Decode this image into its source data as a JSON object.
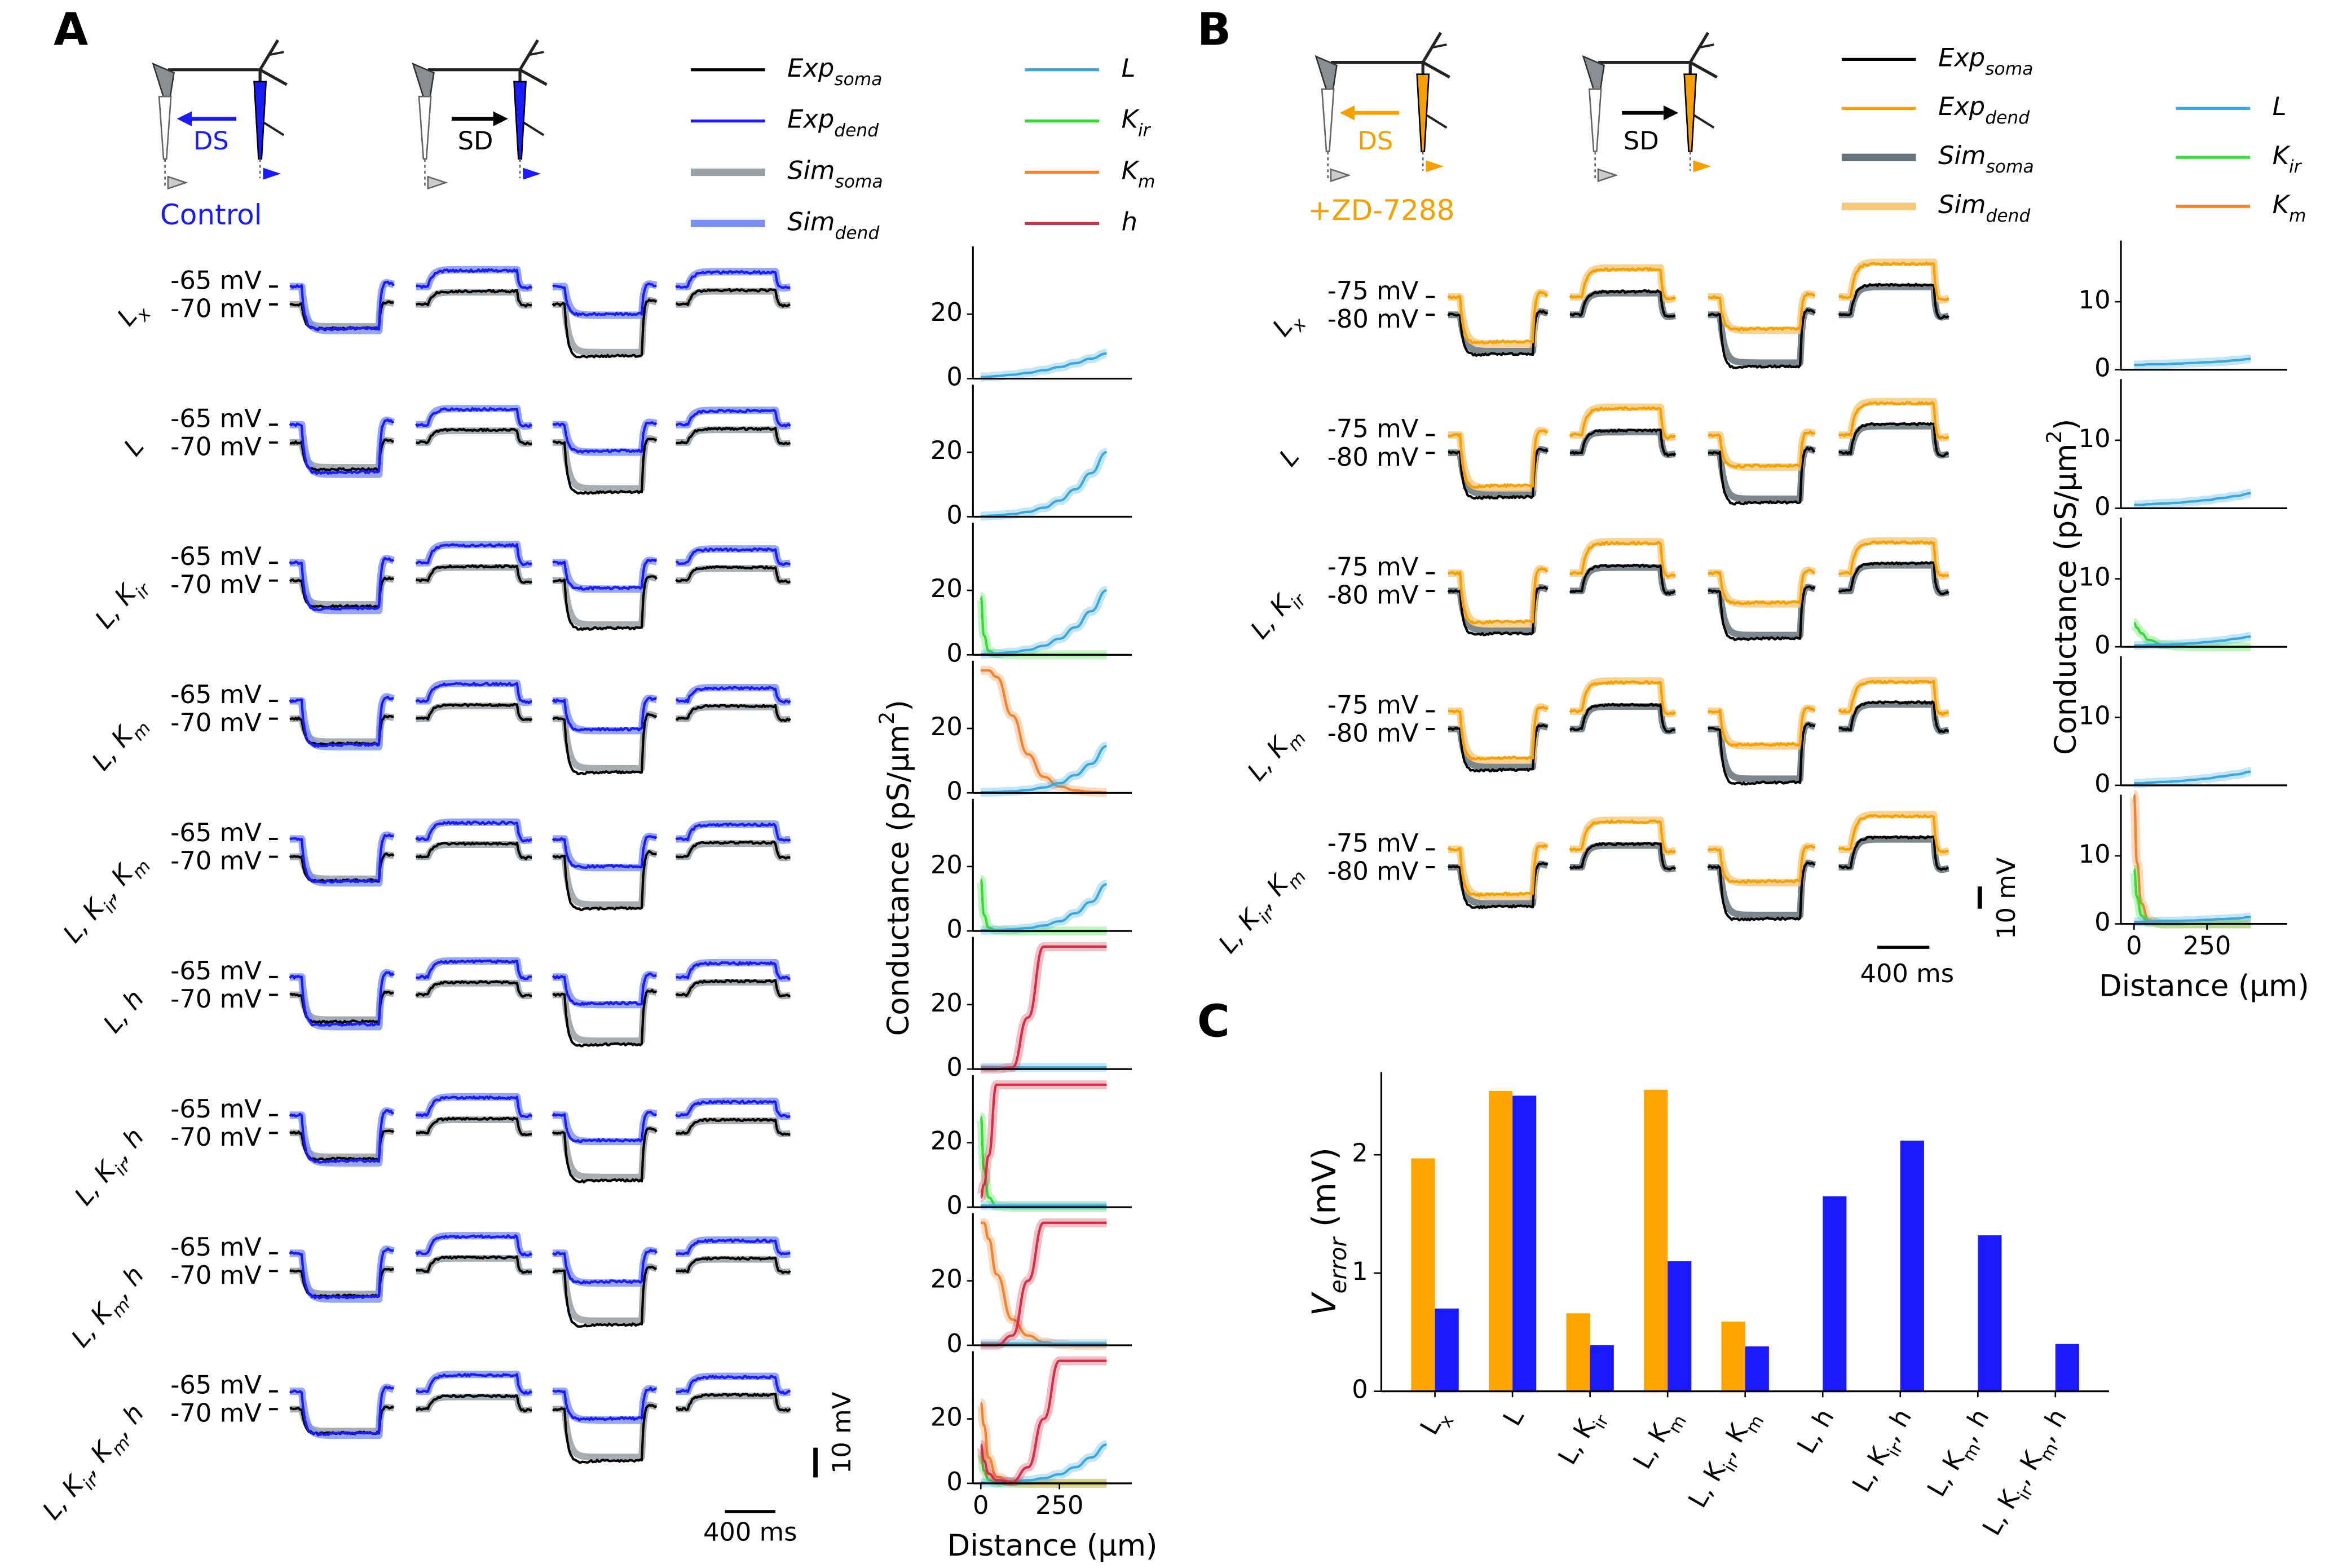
{
  "panel_a": {
    "letter": "A",
    "icon_labels": {
      "ds": "DS",
      "sd": "SD"
    },
    "condition": "Control",
    "legend": [
      {
        "parts": [
          "Exp",
          "soma"
        ],
        "color": "#000000"
      },
      {
        "parts": [
          "Exp",
          "dend"
        ],
        "color": "#1a1aff"
      },
      {
        "parts": [
          "Sim",
          "soma"
        ],
        "color": "#999fa3"
      },
      {
        "parts": [
          "Sim",
          "dend"
        ],
        "color": "#7d8ff5"
      }
    ],
    "channel_legend": [
      {
        "parts": [
          "L"
        ],
        "color": "#3aa8e0"
      },
      {
        "parts": [
          "K",
          "ir"
        ],
        "color": "#33dd33"
      },
      {
        "parts": [
          "K",
          "m"
        ],
        "color": "#f5822a"
      },
      {
        "parts": [
          "h"
        ],
        "color": "#d62c45"
      }
    ],
    "row_labels": [
      [
        "L",
        "x"
      ],
      [
        "L"
      ],
      [
        "L, K",
        "ir"
      ],
      [
        "L, K",
        "m"
      ],
      [
        "L, K",
        "ir",
        ", K",
        "m"
      ],
      [
        "L, h"
      ],
      [
        "L, K",
        "ir",
        ", h"
      ],
      [
        "L, K",
        "m",
        ", h"
      ],
      [
        "L, K",
        "ir",
        ", K",
        "m",
        ", h"
      ]
    ],
    "voltage_labels": [
      "-65 mV",
      "-70 mV"
    ],
    "scale_bars": {
      "voltage": "10 mV",
      "time": "400 ms"
    },
    "conductance": {
      "ylabel": [
        "Conductance (pS/μm",
        "2",
        ")"
      ],
      "xlabel": "Distance (μm)",
      "x": [
        0,
        10,
        25,
        50,
        100,
        150,
        200,
        250,
        300,
        350,
        400
      ],
      "xlim": [
        -25,
        480
      ],
      "xticks": [
        0,
        250
      ],
      "ylim": [
        0,
        41
      ],
      "yticks": [
        0,
        20
      ],
      "plots": [
        {
          "series": [
            {
              "color": "#3aa8e0",
              "values": [
                0.5,
                0.5,
                0.6,
                0.8,
                1.2,
                1.8,
                2.6,
                3.6,
                4.8,
                6.2,
                7.8
              ]
            }
          ]
        },
        {
          "series": [
            {
              "color": "#3aa8e0",
              "values": [
                0.2,
                0.2,
                0.3,
                0.4,
                0.8,
                1.5,
                2.8,
                5,
                8.5,
                13.5,
                20
              ]
            }
          ]
        },
        {
          "series": [
            {
              "color": "#33dd33",
              "values": [
                18,
                6,
                1.2,
                0.2,
                0,
                0,
                0,
                0,
                0,
                0,
                0
              ]
            },
            {
              "color": "#3aa8e0",
              "values": [
                0.2,
                0.2,
                0.3,
                0.4,
                0.8,
                1.5,
                2.8,
                5,
                8.5,
                13.5,
                20
              ]
            }
          ]
        },
        {
          "series": [
            {
              "color": "#f5822a",
              "values": [
                38,
                38,
                38,
                36,
                24,
                12,
                5,
                2,
                0.8,
                0.3,
                0.1
              ]
            },
            {
              "color": "#3aa8e0",
              "values": [
                0.2,
                0.2,
                0.2,
                0.3,
                0.5,
                0.9,
                1.7,
                3,
                5.5,
                9,
                14.5
              ]
            }
          ]
        },
        {
          "series": [
            {
              "color": "#33dd33",
              "values": [
                16,
                5,
                1,
                0.2,
                0,
                0,
                0,
                0,
                0,
                0,
                0
              ]
            },
            {
              "color": "#3aa8e0",
              "values": [
                0.2,
                0.2,
                0.2,
                0.3,
                0.5,
                0.9,
                1.7,
                3,
                5.5,
                9,
                14.5
              ]
            }
          ]
        },
        {
          "series": [
            {
              "color": "#3aa8e0",
              "values": [
                0.5,
                0.5,
                0.5,
                0.5,
                0.5,
                0.5,
                0.5,
                0.5,
                0.5,
                0.5,
                0.5
              ]
            },
            {
              "color": "#d62c45",
              "values": [
                0,
                0,
                0,
                0,
                0.5,
                16,
                38,
                38,
                38,
                38,
                38
              ]
            }
          ]
        },
        {
          "series": [
            {
              "color": "#33dd33",
              "values": [
                28,
                12,
                3,
                0.3,
                0,
                0,
                0,
                0,
                0,
                0,
                0
              ]
            },
            {
              "color": "#3aa8e0",
              "values": [
                0.5,
                0.5,
                0.5,
                0.5,
                0.5,
                0.5,
                0.5,
                0.5,
                0.5,
                0.5,
                0.5
              ]
            },
            {
              "color": "#d62c45",
              "values": [
                3,
                7,
                16,
                38,
                38,
                38,
                38,
                38,
                38,
                38,
                38
              ]
            }
          ]
        },
        {
          "series": [
            {
              "color": "#f5822a",
              "values": [
                38,
                38,
                33,
                22,
                8,
                3,
                1,
                0.3,
                0,
                0,
                0
              ]
            },
            {
              "color": "#3aa8e0",
              "values": [
                0.5,
                0.5,
                0.5,
                0.5,
                0.5,
                0.5,
                0.5,
                0.5,
                0.5,
                0.5,
                0.5
              ]
            },
            {
              "color": "#d62c45",
              "values": [
                0,
                0,
                0,
                0,
                3,
                20,
                38,
                38,
                38,
                38,
                38
              ]
            }
          ]
        },
        {
          "series": [
            {
              "color": "#33dd33",
              "values": [
                10,
                4,
                1,
                0,
                0,
                0,
                0,
                0,
                0,
                0,
                0
              ]
            },
            {
              "color": "#f5822a",
              "values": [
                25,
                18,
                8,
                2,
                0.3,
                0,
                0,
                0,
                0,
                0,
                0
              ]
            },
            {
              "color": "#3aa8e0",
              "values": [
                0.2,
                0.2,
                0.2,
                0.3,
                0.5,
                0.9,
                1.6,
                2.8,
                5,
                8,
                12
              ]
            },
            {
              "color": "#d62c45",
              "values": [
                12,
                7,
                3,
                1,
                0.5,
                5,
                20,
                38,
                38,
                38,
                38
              ]
            }
          ]
        }
      ]
    }
  },
  "panel_b": {
    "letter": "B",
    "icon_labels": {
      "ds": "DS",
      "sd": "SD"
    },
    "condition": "+ZD-7288",
    "legend": [
      {
        "parts": [
          "Exp",
          "soma"
        ],
        "color": "#000000"
      },
      {
        "parts": [
          "Exp",
          "dend"
        ],
        "color": "#f5a000"
      },
      {
        "parts": [
          "Sim",
          "soma"
        ],
        "color": "#65737a"
      },
      {
        "parts": [
          "Sim",
          "dend"
        ],
        "color": "#f7c878"
      }
    ],
    "channel_legend": [
      {
        "parts": [
          "L"
        ],
        "color": "#3aa8e0"
      },
      {
        "parts": [
          "K",
          "ir"
        ],
        "color": "#33dd33"
      },
      {
        "parts": [
          "K",
          "m"
        ],
        "color": "#f5822a"
      }
    ],
    "row_labels": [
      [
        "L",
        "x"
      ],
      [
        "L"
      ],
      [
        "L, K",
        "ir"
      ],
      [
        "L, K",
        "m"
      ],
      [
        "L, K",
        "ir",
        ", K",
        "m"
      ]
    ],
    "voltage_labels": [
      "-75 mV",
      "-80 mV"
    ],
    "scale_bars": {
      "voltage": "10 mV",
      "time": "400 ms"
    },
    "conductance": {
      "ylabel": [
        "Conductance (pS/μm",
        "2",
        ")"
      ],
      "xlabel": "Distance (μm)",
      "x": [
        0,
        10,
        25,
        50,
        100,
        150,
        200,
        250,
        300,
        350,
        400
      ],
      "xlim": [
        -45,
        525
      ],
      "xticks": [
        0,
        250
      ],
      "ylim": [
        0,
        19
      ],
      "yticks": [
        0,
        10
      ],
      "plots": [
        {
          "series": [
            {
              "color": "#3aa8e0",
              "values": [
                0.7,
                0.7,
                0.7,
                0.8,
                0.8,
                0.9,
                1,
                1.1,
                1.2,
                1.4,
                1.6
              ]
            }
          ]
        },
        {
          "series": [
            {
              "color": "#3aa8e0",
              "values": [
                0.5,
                0.5,
                0.5,
                0.6,
                0.7,
                0.8,
                1,
                1.2,
                1.5,
                1.8,
                2.2
              ]
            }
          ]
        },
        {
          "series": [
            {
              "color": "#33dd33",
              "values": [
                3.5,
                2.8,
                2,
                1,
                0.3,
                0.1,
                0,
                0,
                0,
                0,
                0
              ]
            },
            {
              "color": "#3aa8e0",
              "values": [
                0.2,
                0.2,
                0.2,
                0.3,
                0.3,
                0.4,
                0.5,
                0.7,
                0.9,
                1.2,
                1.5
              ]
            }
          ]
        },
        {
          "series": [
            {
              "color": "#3aa8e0",
              "values": [
                0.3,
                0.3,
                0.3,
                0.4,
                0.5,
                0.6,
                0.8,
                1,
                1.3,
                1.6,
                2
              ]
            }
          ]
        },
        {
          "series": [
            {
              "color": "#f5822a",
              "values": [
                19,
                9,
                3,
                0.5,
                0,
                0,
                0,
                0,
                0,
                0,
                0
              ]
            },
            {
              "color": "#33dd33",
              "values": [
                8,
                4,
                1.2,
                0.2,
                0,
                0,
                0,
                0,
                0,
                0,
                0
              ]
            },
            {
              "color": "#3aa8e0",
              "values": [
                0.3,
                0.3,
                0.3,
                0.3,
                0.4,
                0.4,
                0.5,
                0.6,
                0.7,
                0.8,
                1
              ]
            }
          ]
        }
      ]
    }
  },
  "panel_c": {
    "letter": "C",
    "type": "bar",
    "ylabel": [
      "V",
      "error",
      " (mV)"
    ],
    "categories": [
      [
        "L",
        "x"
      ],
      [
        "L"
      ],
      [
        "L, K",
        "ir"
      ],
      [
        "L, K",
        "m"
      ],
      [
        "L, K",
        "ir",
        ", K",
        "m"
      ],
      [
        "L, h"
      ],
      [
        "L, K",
        "ir",
        ", h"
      ],
      [
        "L, K",
        "m",
        ", h"
      ],
      [
        "L, K",
        "ir",
        ", K",
        "m",
        ", h"
      ]
    ],
    "series": [
      {
        "color": "#ffa500",
        "values": [
          1.97,
          2.54,
          0.66,
          2.55,
          0.59,
          null,
          null,
          null,
          null
        ]
      },
      {
        "color": "#1a1aff",
        "values": [
          0.7,
          2.5,
          0.39,
          1.1,
          0.38,
          1.65,
          2.12,
          1.32,
          0.4
        ]
      }
    ],
    "ylim": [
      0,
      2.7
    ],
    "yticks": [
      0,
      1,
      2
    ]
  }
}
